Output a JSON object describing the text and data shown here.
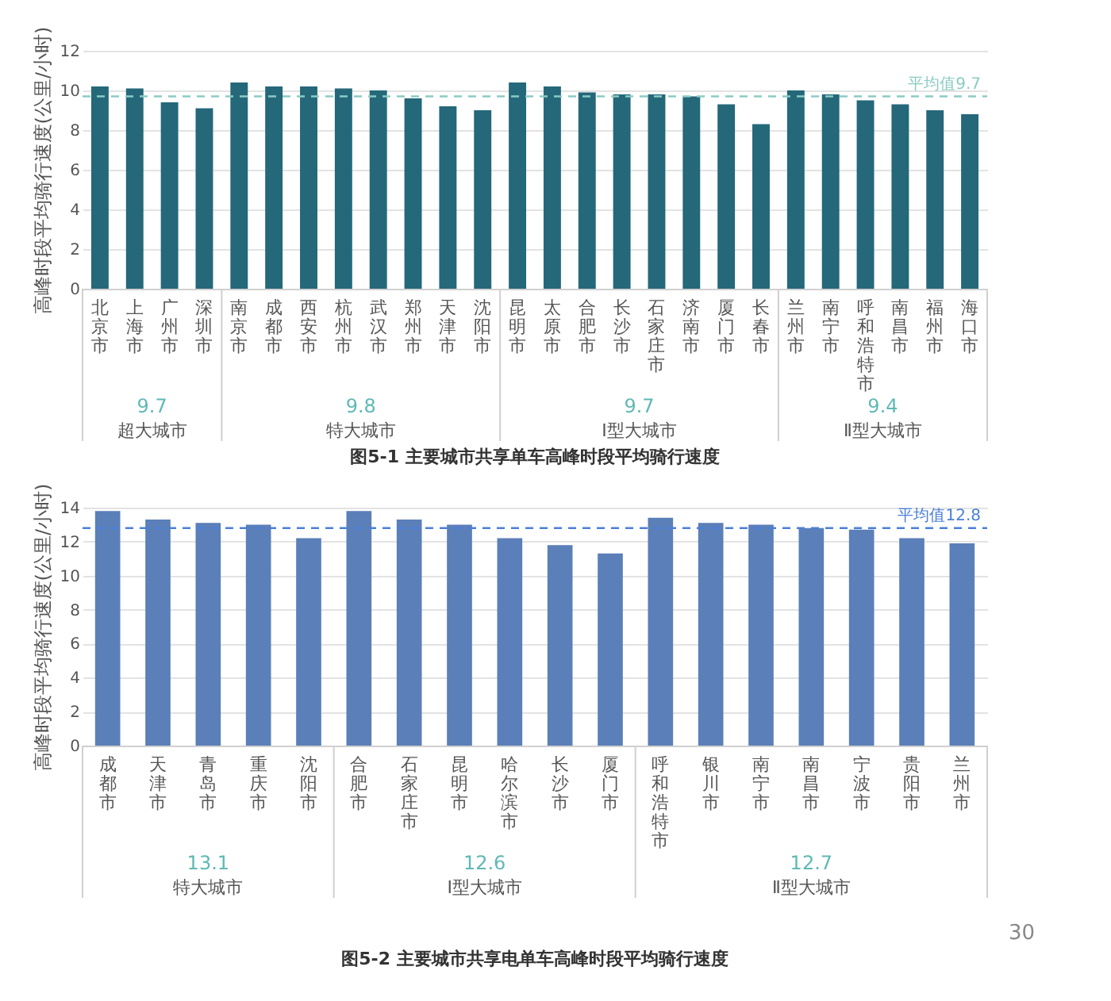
{
  "chart_data": [
    {
      "type": "bar",
      "title": "图5-1 主要城市共享单车高峰时段平均骑行速度",
      "ylabel": "高峰时段平均骑行速度(公里/小时)",
      "categories": [
        "北京市",
        "上海市",
        "广州市",
        "深圳市",
        "南京市",
        "成都市",
        "西安市",
        "杭州市",
        "武汉市",
        "郑州市",
        "天津市",
        "沈阳市",
        "昆明市",
        "太原市",
        "合肥市",
        "长沙市",
        "石家庄市",
        "济南市",
        "厦门市",
        "长春市",
        "兰州市",
        "南宁市",
        "呼和浩特市",
        "南昌市",
        "福州市",
        "海口市"
      ],
      "values": [
        10.2,
        10.1,
        9.4,
        9.1,
        10.4,
        10.2,
        10.2,
        10.1,
        10.0,
        9.6,
        9.2,
        9.0,
        10.4,
        10.2,
        9.9,
        9.8,
        9.8,
        9.7,
        9.3,
        8.3,
        10.0,
        9.8,
        9.5,
        9.3,
        9.0,
        8.8
      ],
      "color": "#24687a",
      "ylim": [
        0,
        12
      ],
      "yticks": [
        0,
        2,
        4,
        6,
        8,
        10,
        12
      ],
      "grid": "y",
      "ref_lines": [
        {
          "axis": "y",
          "value": 9.7,
          "label": "平均值9.7",
          "color": "#8ccbc4",
          "line_style": "dashed"
        }
      ],
      "annotations": [
        "9.7",
        "超大城市",
        "9.8",
        "特大城市",
        "9.7",
        "Ⅰ型大城市",
        "9.4",
        "Ⅱ型大城市"
      ]
    },
    {
      "type": "bar",
      "title": "图5-2 主要城市共享电单车高峰时段平均骑行速度",
      "ylabel": "高峰时段平均骑行速度(公里/小时)",
      "categories": [
        "成都市",
        "天津市",
        "青岛市",
        "重庆市",
        "沈阳市",
        "合肥市",
        "石家庄市",
        "昆明市",
        "哈尔滨市",
        "长沙市",
        "厦门市",
        "呼和浩特市",
        "银川市",
        "南宁市",
        "南昌市",
        "宁波市",
        "贵阳市",
        "兰州市"
      ],
      "values": [
        13.8,
        13.3,
        13.1,
        13.0,
        12.2,
        13.8,
        13.3,
        13.0,
        12.2,
        11.8,
        11.3,
        13.4,
        13.1,
        13.0,
        12.8,
        12.7,
        12.2,
        11.9
      ],
      "color": "#5b7fb8",
      "ylim": [
        0,
        14
      ],
      "yticks": [
        0,
        2,
        4,
        6,
        8,
        10,
        12,
        14
      ],
      "grid": "y",
      "ref_lines": [
        {
          "axis": "y",
          "value": 12.8,
          "label": "平均值12.8",
          "color": "#4a7fd9",
          "line_style": "dashed"
        }
      ],
      "annotations": [
        "13.1",
        "特大城市",
        "12.6",
        "Ⅰ型大城市",
        "12.7",
        "Ⅱ型大城市",
        "30"
      ]
    }
  ]
}
